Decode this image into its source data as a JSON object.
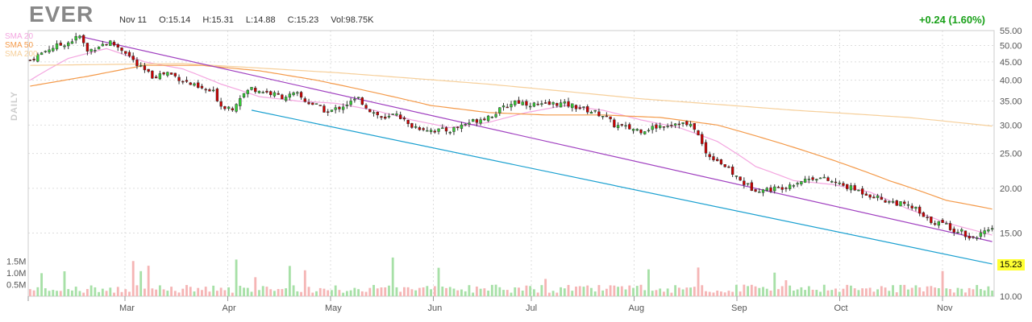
{
  "header": {
    "symbol": "EVER",
    "date": "Nov 11",
    "open": "O:15.14",
    "high": "H:15.31",
    "low": "L:14.88",
    "close": "C:15.23",
    "volume": "Vol:98.75K",
    "change": "+0.24 (1.60%)"
  },
  "legend": [
    {
      "label": "SMA 20",
      "color": "#f4a6e0"
    },
    {
      "label": "SMA 50",
      "color": "#f49a4a"
    },
    {
      "label": "SMA 200",
      "color": "#f6cf9a"
    }
  ],
  "period_label": "DAILY",
  "last_price_tag": "15.23",
  "colors": {
    "up": "#33cc33",
    "down": "#cc0000",
    "vol_up": "#a7e0a7",
    "vol_down": "#f5b5b5",
    "trend_upper": "#a040c0",
    "trend_lower": "#1aa0d0",
    "grid": "#dddddd"
  },
  "chart_data": {
    "type": "candlestick",
    "y_axis": {
      "ticks": [
        "55.00",
        "50.00",
        "45.00",
        "40.00",
        "35.00",
        "30.00",
        "25.00",
        "20.00",
        "15.00",
        "10.00"
      ],
      "range": [
        10,
        55
      ],
      "scale": "log"
    },
    "volume_axis": {
      "ticks": [
        "1.5M",
        "1.0M",
        "0.5M"
      ],
      "range": [
        0,
        2000000
      ]
    },
    "x_axis": {
      "ticks": [
        "Mar",
        "Apr",
        "May",
        "Jun",
        "Jul",
        "Aug",
        "Sep",
        "Oct",
        "Nov"
      ]
    },
    "price_anchors": [
      [
        0,
        45.5
      ],
      [
        5,
        49
      ],
      [
        10,
        51
      ],
      [
        13,
        53
      ],
      [
        15,
        48
      ],
      [
        18,
        50
      ],
      [
        21,
        51
      ],
      [
        25,
        48
      ],
      [
        28,
        44
      ],
      [
        32,
        41
      ],
      [
        36,
        42
      ],
      [
        40,
        40
      ],
      [
        44,
        38
      ],
      [
        48,
        37
      ],
      [
        50,
        34
      ],
      [
        53,
        33.5
      ],
      [
        55,
        36
      ],
      [
        58,
        38
      ],
      [
        62,
        37
      ],
      [
        66,
        36
      ],
      [
        70,
        36.5
      ],
      [
        72,
        35
      ],
      [
        75,
        34
      ],
      [
        78,
        32.5
      ],
      [
        82,
        34
      ],
      [
        86,
        35.5
      ],
      [
        89,
        33
      ],
      [
        93,
        31
      ],
      [
        96,
        32.5
      ],
      [
        99,
        30
      ],
      [
        102,
        29.5
      ],
      [
        106,
        29
      ],
      [
        110,
        29
      ],
      [
        113,
        30
      ],
      [
        117,
        31
      ],
      [
        121,
        32
      ],
      [
        124,
        33.5
      ],
      [
        127,
        35
      ],
      [
        130,
        34.5
      ],
      [
        134,
        34
      ],
      [
        138,
        34.5
      ],
      [
        142,
        34
      ],
      [
        146,
        33
      ],
      [
        150,
        32
      ],
      [
        153,
        30
      ],
      [
        156,
        29.5
      ],
      [
        160,
        29
      ],
      [
        163,
        29.5
      ],
      [
        166,
        30
      ],
      [
        170,
        30.5
      ],
      [
        174,
        29.5
      ],
      [
        177,
        25
      ],
      [
        180,
        24
      ],
      [
        183,
        22.5
      ],
      [
        186,
        21
      ],
      [
        189,
        20
      ],
      [
        192,
        19.8
      ],
      [
        196,
        20
      ],
      [
        199,
        20.5
      ],
      [
        202,
        21
      ],
      [
        206,
        21.5
      ],
      [
        209,
        21
      ],
      [
        212,
        20.5
      ],
      [
        215,
        20
      ],
      [
        218,
        19.5
      ],
      [
        221,
        19
      ],
      [
        224,
        18.5
      ],
      [
        227,
        18.2
      ],
      [
        230,
        17.8
      ],
      [
        232,
        17.5
      ],
      [
        234,
        16.5
      ],
      [
        236,
        16.2
      ],
      [
        238,
        16
      ],
      [
        240,
        15.8
      ],
      [
        242,
        15.3
      ],
      [
        244,
        15.2
      ],
      [
        246,
        14.5
      ],
      [
        248,
        14.8
      ],
      [
        250,
        15
      ],
      [
        252,
        15.23
      ]
    ],
    "trendlines": [
      {
        "name": "upper",
        "from": [
          13,
          53
        ],
        "to": [
          252,
          14.2
        ]
      },
      {
        "name": "lower",
        "from": [
          58,
          33
        ],
        "to": [
          252,
          12.3
        ]
      }
    ],
    "sma_anchors": {
      "SMA 20": [
        [
          0,
          40
        ],
        [
          10,
          46
        ],
        [
          20,
          49
        ],
        [
          30,
          45
        ],
        [
          40,
          43
        ],
        [
          50,
          39
        ],
        [
          60,
          36
        ],
        [
          70,
          35
        ],
        [
          80,
          34.5
        ],
        [
          90,
          33
        ],
        [
          100,
          31
        ],
        [
          110,
          29.5
        ],
        [
          120,
          30.5
        ],
        [
          130,
          32.5
        ],
        [
          140,
          34
        ],
        [
          150,
          33
        ],
        [
          160,
          31
        ],
        [
          170,
          29.5
        ],
        [
          180,
          27
        ],
        [
          190,
          23
        ],
        [
          200,
          21
        ],
        [
          210,
          20.5
        ],
        [
          220,
          19.5
        ],
        [
          230,
          17.5
        ],
        [
          240,
          16
        ],
        [
          252,
          14.8
        ]
      ],
      "SMA 50": [
        [
          0,
          38.5
        ],
        [
          15,
          41
        ],
        [
          30,
          44
        ],
        [
          45,
          44
        ],
        [
          60,
          42.5
        ],
        [
          75,
          40
        ],
        [
          90,
          37
        ],
        [
          105,
          34
        ],
        [
          120,
          32.5
        ],
        [
          135,
          32
        ],
        [
          150,
          32
        ],
        [
          165,
          31.5
        ],
        [
          180,
          30
        ],
        [
          195,
          27
        ],
        [
          210,
          24
        ],
        [
          225,
          21
        ],
        [
          240,
          18.5
        ],
        [
          252,
          17.5
        ]
      ],
      "SMA 200": [
        [
          0,
          44
        ],
        [
          40,
          44.5
        ],
        [
          80,
          42
        ],
        [
          120,
          39
        ],
        [
          160,
          35.5
        ],
        [
          200,
          33
        ],
        [
          230,
          31.5
        ],
        [
          252,
          29.8
        ]
      ]
    }
  }
}
